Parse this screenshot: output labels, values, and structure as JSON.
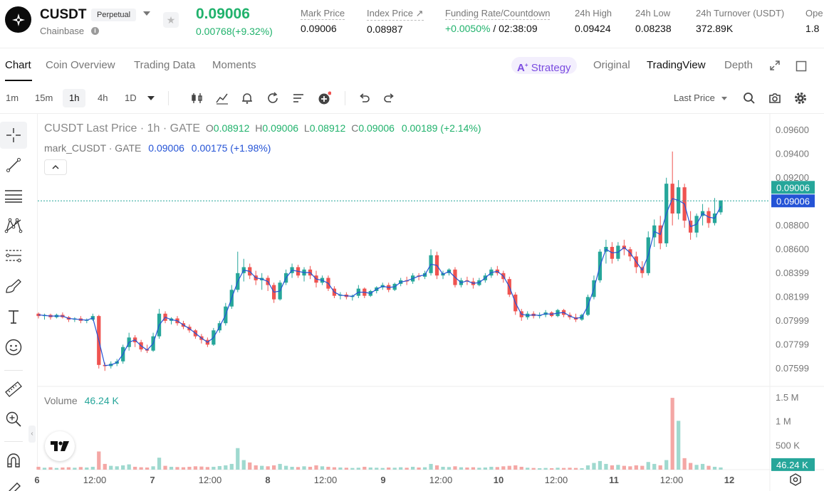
{
  "header": {
    "symbol": "CUSDT",
    "badge": "Perpetual",
    "exchange": "Chainbase",
    "last_price": "0.09006",
    "change": "0.00768(+9.32%)",
    "stats": [
      {
        "label": "Mark Price",
        "value": "0.09006"
      },
      {
        "label": "Index Price ↗",
        "value": "0.08987"
      },
      {
        "label": "Funding Rate/Countdown",
        "value_green": "+0.0050%",
        "value": " / 02:38:09"
      },
      {
        "label": "24h High",
        "value": "0.09424"
      },
      {
        "label": "24h Low",
        "value": "0.08238"
      },
      {
        "label": "24h Turnover (USDT)",
        "value": "372.89K"
      },
      {
        "label": "Ope",
        "value": "1.8"
      }
    ]
  },
  "tabs": {
    "left": [
      "Chart",
      "Coin Overview",
      "Trading Data",
      "Moments"
    ],
    "strategy": "Strategy",
    "right": [
      "Original",
      "TradingView",
      "Depth"
    ]
  },
  "toolbar": {
    "timeframes": [
      "1m",
      "15m",
      "1h",
      "4h",
      "1D"
    ],
    "last_price_select": "Last Price"
  },
  "legend": {
    "title": "CUSDT Last Price · 1h · GATE",
    "o_label": "O",
    "o": "0.08912",
    "h_label": "H",
    "h": "0.09006",
    "l_label": "L",
    "l": "0.08912",
    "c_label": "C",
    "c": "0.09006",
    "change": "0.00189 (+2.14%)",
    "mark_title": "mark_CUSDT · GATE",
    "mark_value": "0.09006",
    "mark_change": "0.00175 (+1.98%)",
    "volume_label": "Volume",
    "volume_value": "46.24 K"
  },
  "colors": {
    "up": "#26a69a",
    "down": "#ef5350",
    "mark_line": "#2453d6",
    "accent_green": "#20b26c",
    "strategy": "#7b4ce0"
  },
  "chart_data": {
    "type": "candlestick",
    "price_axis_ticks": [
      "0.09600",
      "0.09400",
      "0.09200",
      "0.08800",
      "0.08600",
      "0.08399",
      "0.08199",
      "0.07999",
      "0.07799",
      "0.07599"
    ],
    "price_labels": {
      "last": "0.09006",
      "mark": "0.09006"
    },
    "volume_axis_ticks": [
      "1.5 M",
      "1 M",
      "500 K"
    ],
    "volume_label": "46.24 K",
    "x_ticks": [
      "6",
      "12:00",
      "7",
      "12:00",
      "8",
      "12:00",
      "9",
      "12:00",
      "10",
      "12:00",
      "11",
      "12:00",
      "12"
    ],
    "ylim": [
      0.0745,
      0.097
    ],
    "last_price": 0.09006,
    "ohlc": [
      [
        0.0806,
        0.0807,
        0.0802,
        0.0804
      ],
      [
        0.0804,
        0.0806,
        0.0801,
        0.0805
      ],
      [
        0.0805,
        0.0806,
        0.0801,
        0.0803
      ],
      [
        0.0803,
        0.0806,
        0.0802,
        0.0805
      ],
      [
        0.0805,
        0.0807,
        0.0802,
        0.0803
      ],
      [
        0.0803,
        0.0804,
        0.0799,
        0.0801
      ],
      [
        0.0801,
        0.0803,
        0.0799,
        0.0802
      ],
      [
        0.0802,
        0.0804,
        0.0798,
        0.08
      ],
      [
        0.08,
        0.0802,
        0.0798,
        0.0801
      ],
      [
        0.0801,
        0.0806,
        0.08,
        0.0804
      ],
      [
        0.0804,
        0.0805,
        0.076,
        0.0763
      ],
      [
        0.0763,
        0.0765,
        0.0758,
        0.0762
      ],
      [
        0.0762,
        0.0766,
        0.076,
        0.0764
      ],
      [
        0.0764,
        0.0768,
        0.0762,
        0.0766
      ],
      [
        0.0766,
        0.078,
        0.0764,
        0.0778
      ],
      [
        0.0778,
        0.079,
        0.0775,
        0.0786
      ],
      [
        0.0786,
        0.0788,
        0.0778,
        0.0782
      ],
      [
        0.0782,
        0.0784,
        0.0774,
        0.0776
      ],
      [
        0.0776,
        0.078,
        0.0773,
        0.0775
      ],
      [
        0.0775,
        0.079,
        0.0774,
        0.0787
      ],
      [
        0.0787,
        0.081,
        0.0785,
        0.0806
      ],
      [
        0.0806,
        0.0808,
        0.0798,
        0.08
      ],
      [
        0.08,
        0.0803,
        0.0797,
        0.0802
      ],
      [
        0.0802,
        0.0804,
        0.0796,
        0.0798
      ],
      [
        0.0798,
        0.08,
        0.0793,
        0.0795
      ],
      [
        0.0795,
        0.0797,
        0.079,
        0.0792
      ],
      [
        0.0792,
        0.0793,
        0.0785,
        0.0787
      ],
      [
        0.0787,
        0.0789,
        0.0781,
        0.0784
      ],
      [
        0.0784,
        0.0786,
        0.0778,
        0.078
      ],
      [
        0.078,
        0.0794,
        0.0779,
        0.0792
      ],
      [
        0.0792,
        0.08,
        0.079,
        0.0798
      ],
      [
        0.0798,
        0.0815,
        0.0796,
        0.0812
      ],
      [
        0.0812,
        0.083,
        0.081,
        0.0826
      ],
      [
        0.0826,
        0.0858,
        0.0824,
        0.084
      ],
      [
        0.084,
        0.0852,
        0.0833,
        0.0845
      ],
      [
        0.0845,
        0.0848,
        0.0835,
        0.0838
      ],
      [
        0.0838,
        0.0842,
        0.083,
        0.0834
      ],
      [
        0.0834,
        0.084,
        0.0826,
        0.0836
      ],
      [
        0.0836,
        0.0838,
        0.0825,
        0.083
      ],
      [
        0.083,
        0.0832,
        0.0815,
        0.0818
      ],
      [
        0.0818,
        0.0834,
        0.0817,
        0.0832
      ],
      [
        0.0832,
        0.0843,
        0.083,
        0.084
      ],
      [
        0.084,
        0.0848,
        0.0836,
        0.0845
      ],
      [
        0.0845,
        0.0847,
        0.0836,
        0.0838
      ],
      [
        0.0838,
        0.0845,
        0.0833,
        0.0843
      ],
      [
        0.0843,
        0.0846,
        0.0835,
        0.0838
      ],
      [
        0.0838,
        0.0842,
        0.0828,
        0.0832
      ],
      [
        0.0832,
        0.0838,
        0.083,
        0.0836
      ],
      [
        0.0836,
        0.0838,
        0.0825,
        0.0827
      ],
      [
        0.0827,
        0.0829,
        0.0819,
        0.0821
      ],
      [
        0.0821,
        0.0824,
        0.0818,
        0.0822
      ],
      [
        0.0822,
        0.0824,
        0.0818,
        0.082
      ],
      [
        0.082,
        0.0822,
        0.0817,
        0.0821
      ],
      [
        0.0821,
        0.083,
        0.0819,
        0.0827
      ],
      [
        0.0827,
        0.0828,
        0.0819,
        0.0821
      ],
      [
        0.0821,
        0.0826,
        0.082,
        0.0825
      ],
      [
        0.0825,
        0.0829,
        0.0823,
        0.0828
      ],
      [
        0.0828,
        0.0832,
        0.0826,
        0.083
      ],
      [
        0.083,
        0.0832,
        0.0824,
        0.0826
      ],
      [
        0.0826,
        0.0832,
        0.0825,
        0.0831
      ],
      [
        0.0831,
        0.0836,
        0.0829,
        0.0834
      ],
      [
        0.0834,
        0.0837,
        0.083,
        0.0833
      ],
      [
        0.0833,
        0.084,
        0.0831,
        0.0838
      ],
      [
        0.0838,
        0.084,
        0.0834,
        0.0837
      ],
      [
        0.0837,
        0.0842,
        0.0835,
        0.084
      ],
      [
        0.084,
        0.086,
        0.0838,
        0.0855
      ],
      [
        0.0855,
        0.0858,
        0.0835,
        0.0838
      ],
      [
        0.0838,
        0.0842,
        0.0835,
        0.084
      ],
      [
        0.084,
        0.0844,
        0.0838,
        0.0843
      ],
      [
        0.0843,
        0.0845,
        0.0828,
        0.083
      ],
      [
        0.083,
        0.0836,
        0.0828,
        0.0834
      ],
      [
        0.0834,
        0.0837,
        0.083,
        0.0833
      ],
      [
        0.0833,
        0.0836,
        0.0827,
        0.083
      ],
      [
        0.083,
        0.0836,
        0.0829,
        0.0834
      ],
      [
        0.0834,
        0.084,
        0.0832,
        0.0838
      ],
      [
        0.0838,
        0.0845,
        0.0836,
        0.0843
      ],
      [
        0.0843,
        0.0846,
        0.0838,
        0.084
      ],
      [
        0.084,
        0.0842,
        0.0832,
        0.0835
      ],
      [
        0.0835,
        0.0837,
        0.082,
        0.0822
      ],
      [
        0.0822,
        0.0824,
        0.0805,
        0.0808
      ],
      [
        0.0808,
        0.081,
        0.08,
        0.0803
      ],
      [
        0.0803,
        0.0808,
        0.0801,
        0.0806
      ],
      [
        0.0806,
        0.0808,
        0.0802,
        0.0804
      ],
      [
        0.0804,
        0.0807,
        0.0802,
        0.0805
      ],
      [
        0.0805,
        0.0809,
        0.0803,
        0.0807
      ],
      [
        0.0807,
        0.0808,
        0.0803,
        0.0804
      ],
      [
        0.0804,
        0.081,
        0.0803,
        0.0809
      ],
      [
        0.0809,
        0.081,
        0.0803,
        0.0805
      ],
      [
        0.0805,
        0.0807,
        0.0801,
        0.0803
      ],
      [
        0.0803,
        0.0806,
        0.0799,
        0.0801
      ],
      [
        0.0801,
        0.0806,
        0.08,
        0.0805
      ],
      [
        0.0805,
        0.0822,
        0.0804,
        0.082
      ],
      [
        0.082,
        0.0838,
        0.0818,
        0.0834
      ],
      [
        0.0834,
        0.086,
        0.0832,
        0.0858
      ],
      [
        0.0858,
        0.0868,
        0.0848,
        0.0862
      ],
      [
        0.0862,
        0.0866,
        0.0848,
        0.0852
      ],
      [
        0.0852,
        0.0866,
        0.085,
        0.0863
      ],
      [
        0.0863,
        0.0868,
        0.0855,
        0.086
      ],
      [
        0.086,
        0.0862,
        0.085,
        0.0854
      ],
      [
        0.0854,
        0.0858,
        0.084,
        0.0845
      ],
      [
        0.0845,
        0.085,
        0.0836,
        0.084
      ],
      [
        0.084,
        0.0875,
        0.0838,
        0.087
      ],
      [
        0.087,
        0.0885,
        0.0862,
        0.088
      ],
      [
        0.088,
        0.0888,
        0.086,
        0.0865
      ],
      [
        0.0865,
        0.092,
        0.0862,
        0.0915
      ],
      [
        0.0915,
        0.0942,
        0.088,
        0.089
      ],
      [
        0.089,
        0.0918,
        0.0885,
        0.0912
      ],
      [
        0.0912,
        0.0915,
        0.0878,
        0.0884
      ],
      [
        0.0884,
        0.0892,
        0.0868,
        0.0874
      ],
      [
        0.0874,
        0.089,
        0.087,
        0.0888
      ],
      [
        0.0888,
        0.0898,
        0.088,
        0.0892
      ],
      [
        0.0892,
        0.0895,
        0.0878,
        0.0882
      ],
      [
        0.0882,
        0.0903,
        0.088,
        0.089
      ],
      [
        0.0891,
        0.0901,
        0.0889,
        0.0901
      ]
    ],
    "volume": [
      60,
      40,
      50,
      35,
      45,
      50,
      40,
      55,
      45,
      60,
      380,
      120,
      80,
      70,
      90,
      110,
      60,
      50,
      45,
      70,
      250,
      80,
      60,
      55,
      50,
      60,
      70,
      65,
      55,
      60,
      75,
      90,
      120,
      450,
      200,
      150,
      90,
      80,
      70,
      90,
      120,
      80,
      60,
      55,
      70,
      60,
      90,
      70,
      60,
      50,
      45,
      40,
      35,
      40,
      60,
      45,
      40,
      35,
      45,
      40,
      50,
      40,
      60,
      45,
      50,
      120,
      90,
      60,
      55,
      70,
      50,
      45,
      50,
      40,
      45,
      60,
      55,
      70,
      80,
      90,
      60,
      40,
      35,
      30,
      35,
      30,
      40,
      35,
      40,
      35,
      30,
      90,
      140,
      180,
      120,
      90,
      100,
      80,
      70,
      90,
      80,
      160,
      120,
      90,
      200,
      1500,
      1020,
      240,
      140,
      100,
      120,
      80,
      60,
      46
    ]
  }
}
